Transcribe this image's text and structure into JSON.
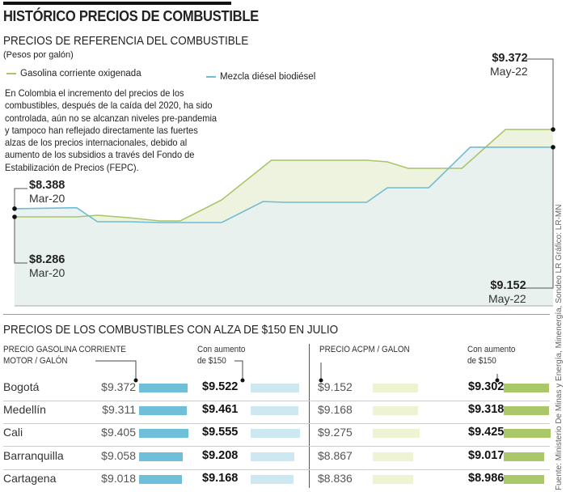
{
  "header": {
    "title": "HISTÓRICO PRECIOS DE COMBUSTIBLE"
  },
  "chart_data": {
    "type": "area",
    "title": "PRECIOS DE REFERENCIA DEL COMBUSTIBLE",
    "units": "(Pesos por galón)",
    "xlabel": "",
    "ylabel": "",
    "x_months_from_mar20": [
      0,
      26
    ],
    "series": [
      {
        "name": "Gasolina corriente oxigenada",
        "color": "#a9c46a",
        "fill": "#eef3df",
        "x": [
          0,
          3,
          4,
          5.5,
          7,
          8,
          10,
          12.4,
          17,
          18,
          19,
          21.6,
          23.7,
          26
        ],
        "values": [
          8286,
          8286,
          8306,
          8276,
          8236,
          8236,
          8497,
          8990,
          8990,
          8970,
          8889,
          8889,
          9372,
          9372
        ]
      },
      {
        "name": "Mezcla diésel biodiésel",
        "color": "#6fbcd4",
        "fill": "#e6f0f0",
        "x": [
          0,
          3,
          4,
          5.5,
          7,
          10,
          12,
          13,
          17,
          18,
          20,
          22,
          26
        ],
        "values": [
          8388,
          8400,
          8226,
          8226,
          8216,
          8216,
          8477,
          8467,
          8467,
          8648,
          8648,
          9152,
          9152
        ]
      }
    ],
    "annotations": {
      "start_top": {
        "value": "$8.388",
        "date": "Mar-20"
      },
      "start_bottom": {
        "value": "$8.286",
        "date": "Mar-20"
      },
      "end_top": {
        "value": "$9.372",
        "date": "May-22"
      },
      "end_bottom": {
        "value": "$9.152",
        "date": "May-22"
      }
    },
    "description": "En Colombia el incremento del precios de los combustibles, después de la caída del 2020, ha sido controlada, aún no se alcanzan niveles pre-pandemia y tampoco han reflejado directamente las fuertes alzas de los precios internacionales, debido al aumento de los subsidios a través del Fondo de Estabilización de Precios (FEPC)."
  },
  "table": {
    "title": "PRECIOS DE LOS COMBUSTIBLES CON ALZA DE $150 EN JULIO",
    "col1_line1": "PRECIO GASOLINA CORRIENTE",
    "col1_line2": "MOTOR / GALÓN",
    "col2_line1": "Con aumento",
    "col2_line2": "de $150",
    "col3_line1": "PRECIO ACPM / GALON",
    "col4_line1": "Con aumento",
    "col4_line2": "de $150",
    "colors": {
      "gas": "#6fbfd8",
      "gas_up": "#cde8f0",
      "acpm": "#eef3d4",
      "acpm_up": "#aac86a"
    },
    "rows": [
      {
        "city": "Bogotá",
        "gas": "$9.372",
        "gas_up": "$9.522",
        "acpm": "$9.152",
        "acpm_up": "$9.302",
        "v": [
          9372,
          9522,
          9152,
          9302
        ]
      },
      {
        "city": "Medellín",
        "gas": "$9.311",
        "gas_up": "$9.461",
        "acpm": "$9.168",
        "acpm_up": "$9.318",
        "v": [
          9311,
          9461,
          9168,
          9318
        ]
      },
      {
        "city": "Cali",
        "gas": "$9.405",
        "gas_up": "$9.555",
        "acpm": "$9.275",
        "acpm_up": "$9.425",
        "v": [
          9405,
          9555,
          9275,
          9425
        ]
      },
      {
        "city": "Barranquilla",
        "gas": "$9.058",
        "gas_up": "$9.208",
        "acpm": "$8.867",
        "acpm_up": "$9.017",
        "v": [
          9058,
          9208,
          8867,
          9017
        ]
      },
      {
        "city": "Cartagena",
        "gas": "$9.018",
        "gas_up": "$9.168",
        "acpm": "$8.836",
        "acpm_up": "$8.986",
        "v": [
          9018,
          9168,
          8836,
          8986
        ]
      }
    ]
  },
  "credits": {
    "graphic": "Gráfico: LR-MN",
    "source": "Fuente: Ministerio De Minas y Energía, Minenergía, Sondeo LR"
  }
}
